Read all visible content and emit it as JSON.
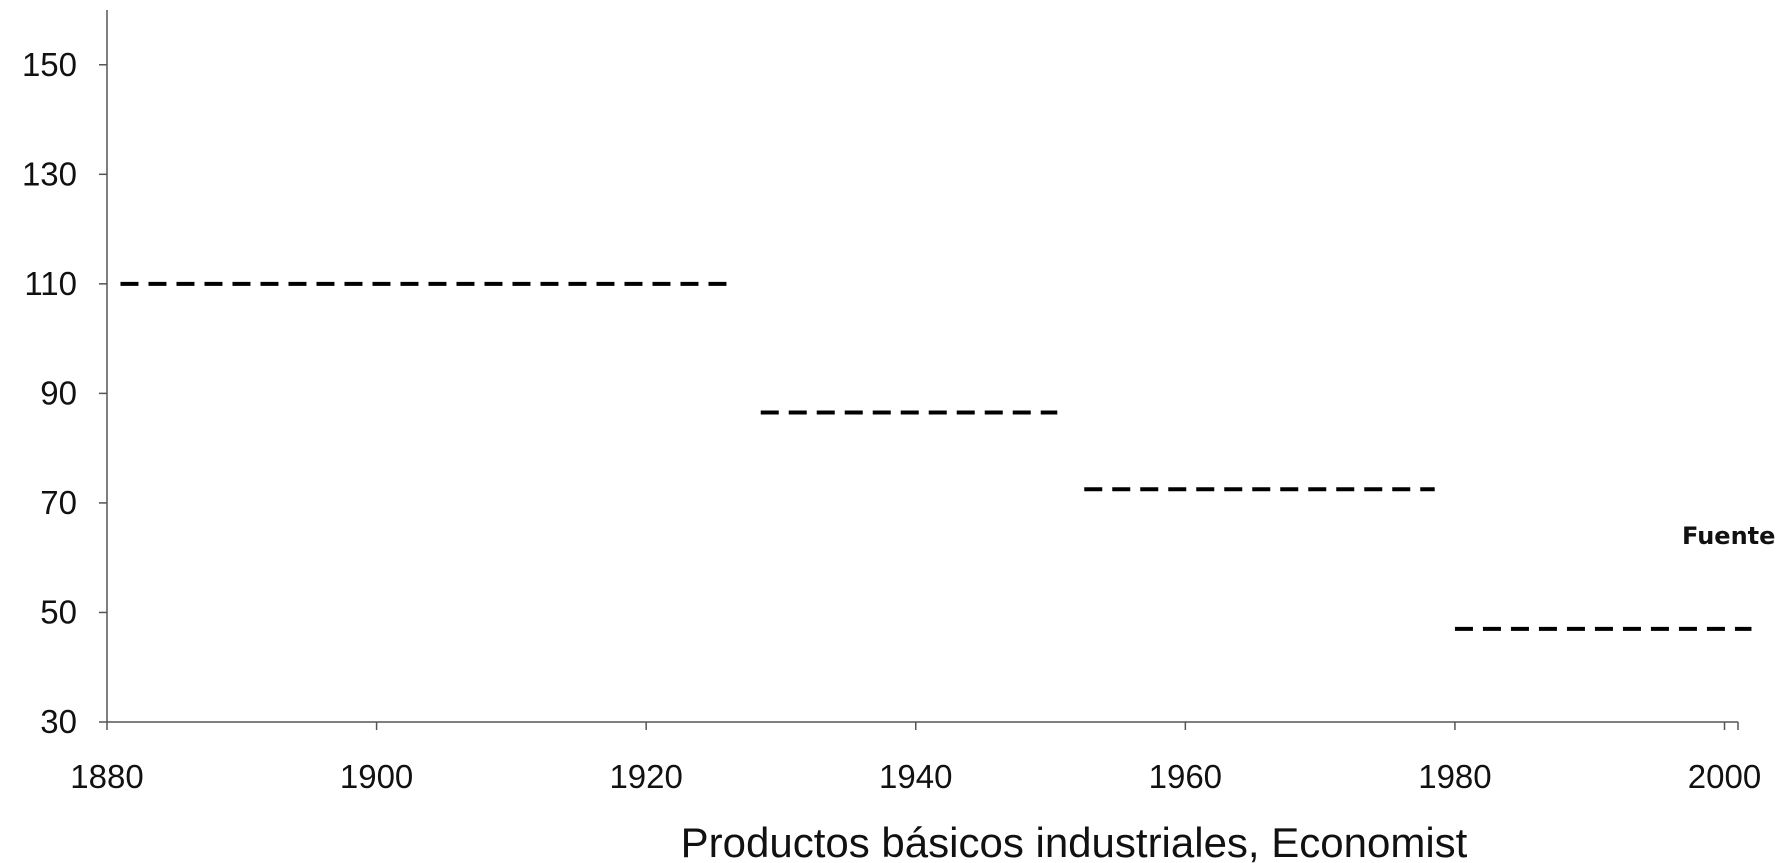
{
  "chart_data": {
    "type": "line",
    "title": "",
    "xlabel": "Productos básicos industriales, Economist",
    "ylabel": "",
    "xlim": [
      1880,
      2001
    ],
    "ylim": [
      30,
      160
    ],
    "x_ticks": [
      "1880",
      "1900",
      "1920",
      "1940",
      "1960",
      "1980",
      "2000"
    ],
    "y_ticks": [
      "30",
      "50",
      "70",
      "90",
      "110",
      "130",
      "150"
    ],
    "grid": false,
    "legend": "none",
    "series": [
      {
        "style": "dashed",
        "color": "#000000",
        "segments": [
          {
            "x": [
              1881,
              1926
            ],
            "y": [
              110,
              110
            ]
          },
          {
            "x": [
              1928.5,
              1950.5
            ],
            "y": [
              86.5,
              86.5
            ]
          },
          {
            "x": [
              1952.5,
              1978.5
            ],
            "y": [
              72.5,
              72.5
            ]
          },
          {
            "x": [
              1980,
              2002
            ],
            "y": [
              47,
              47
            ]
          }
        ]
      }
    ],
    "annotations": [
      "Fuente"
    ]
  }
}
